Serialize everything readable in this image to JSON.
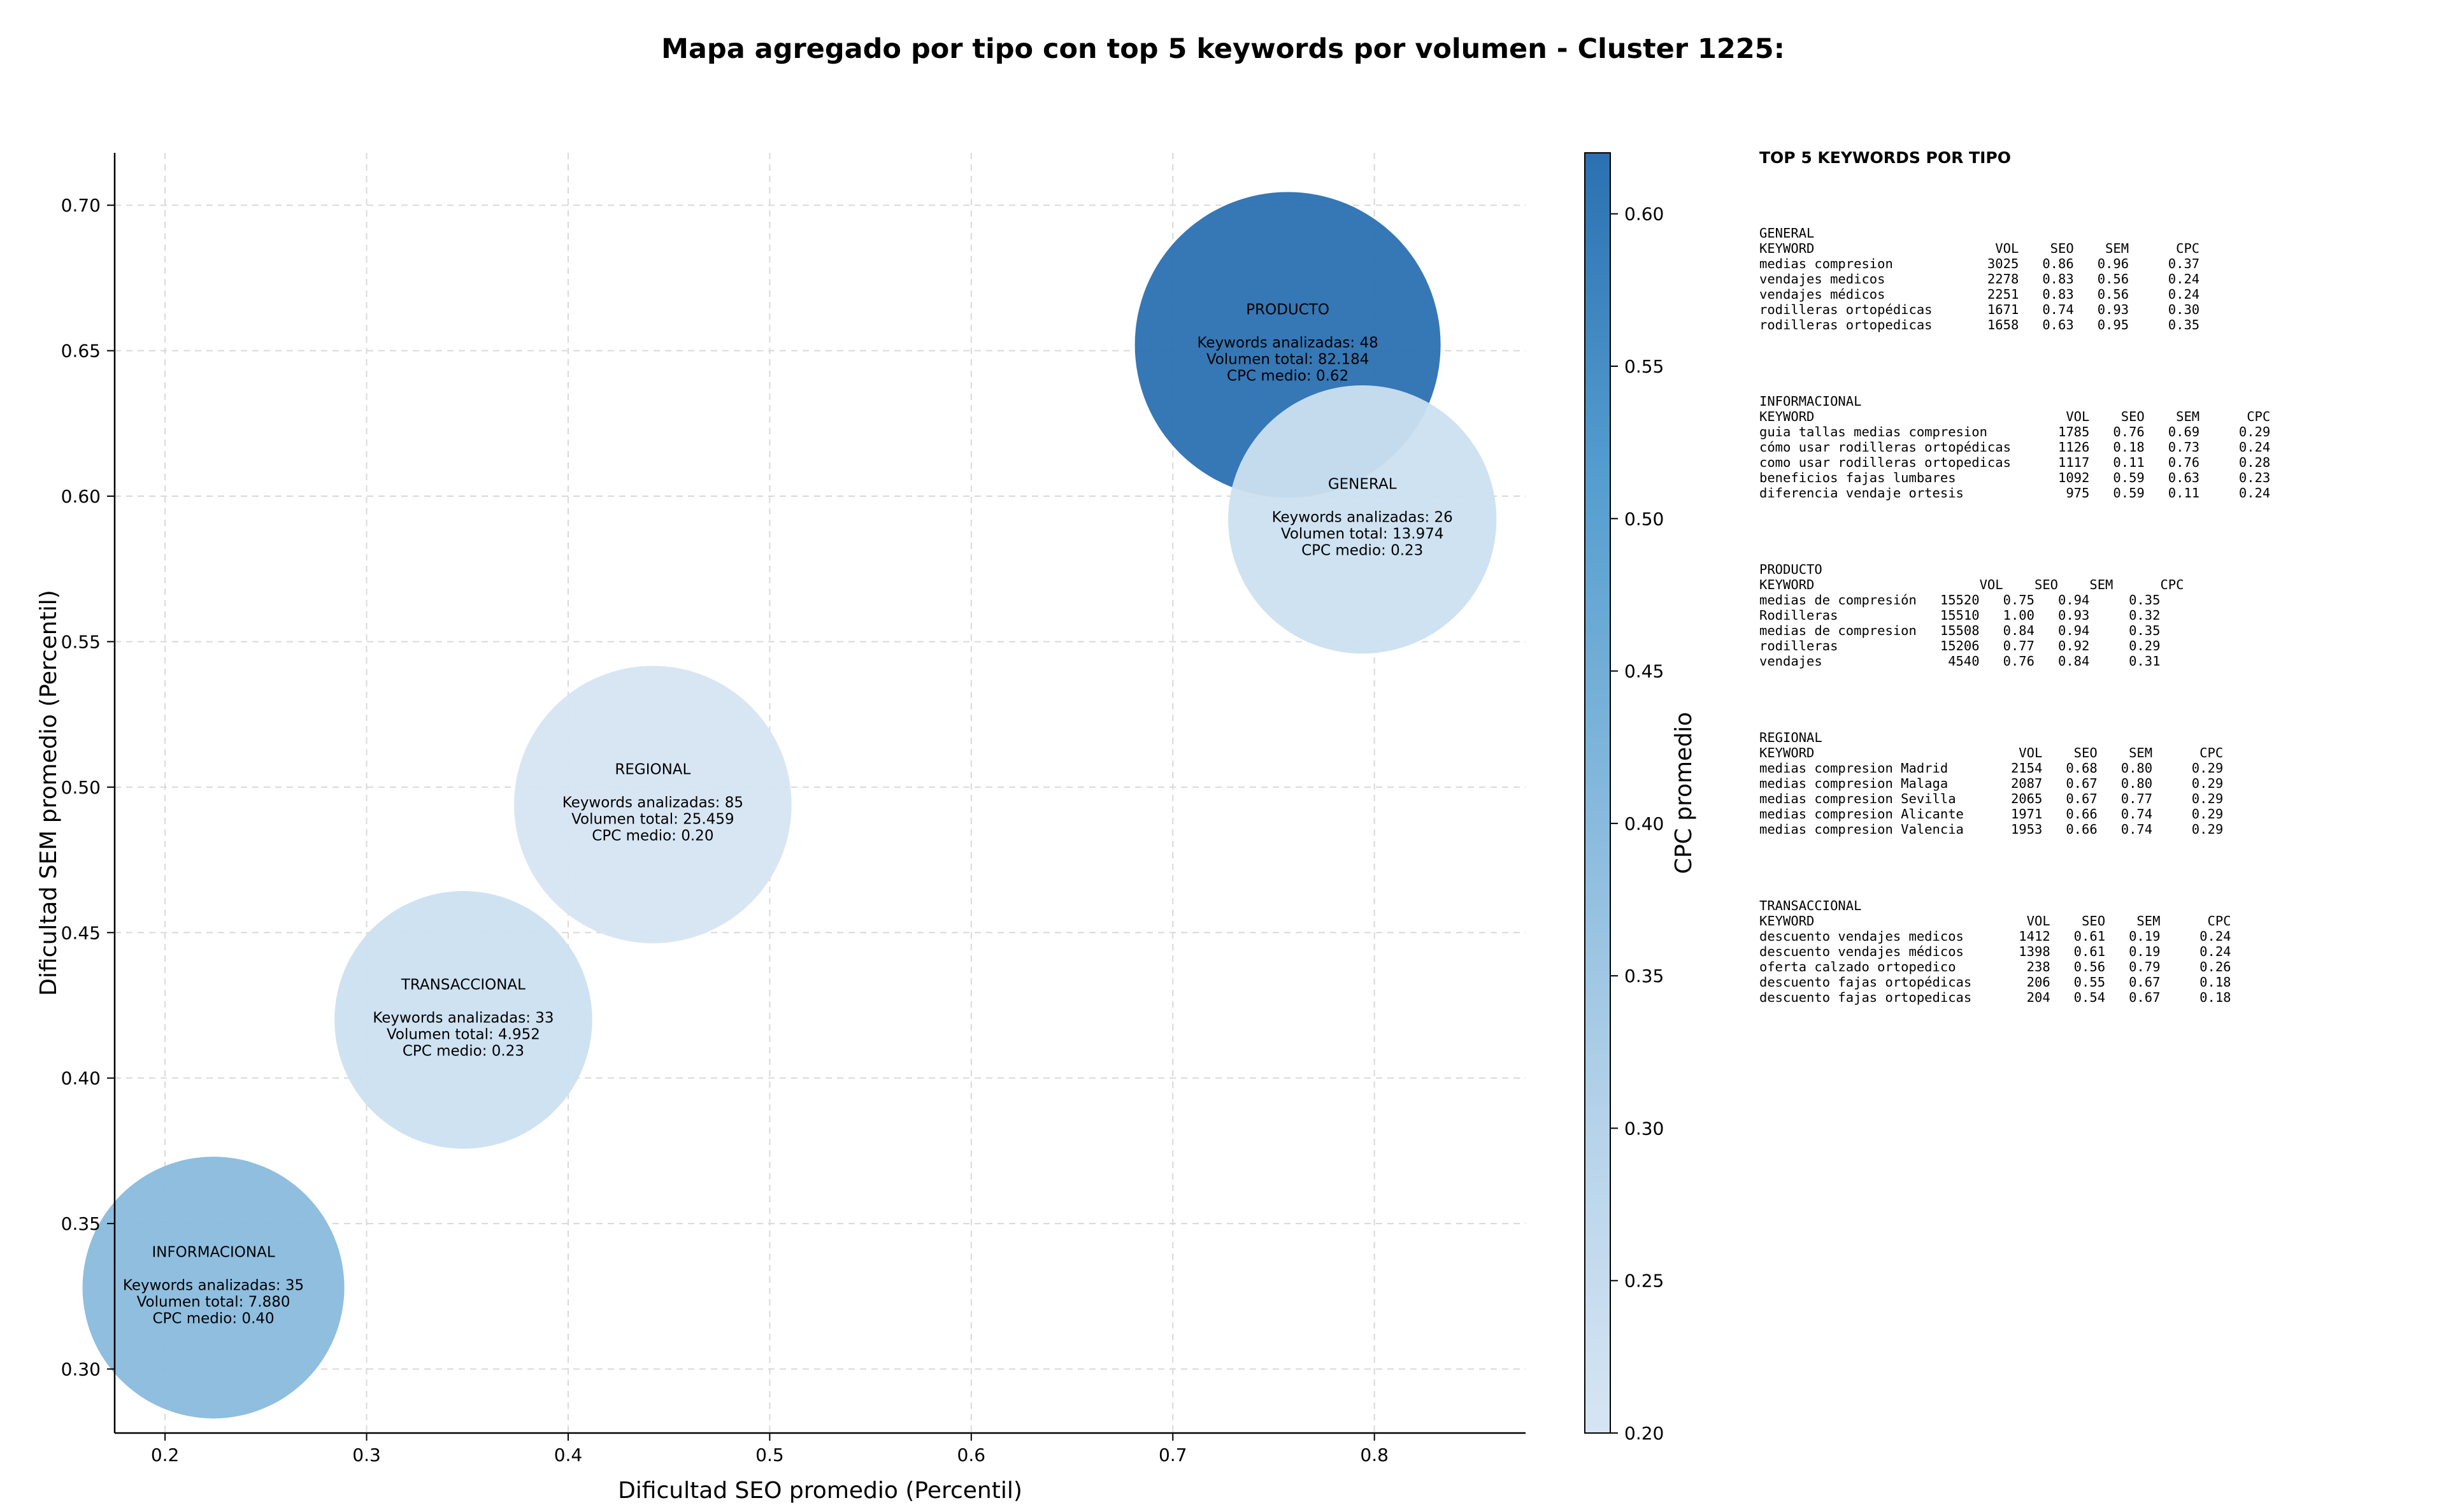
{
  "title": "Mapa agregado por tipo con top 5 keywords por volumen - Cluster 1225:",
  "chart_data": {
    "type": "scatter",
    "title": "Mapa agregado por tipo con top 5 keywords por volumen - Cluster 1225:",
    "xlabel": "Dificultad SEO promedio (Percentil)",
    "ylabel": "Dificultad SEM promedio (Percentil)",
    "xlim": [
      0.175,
      0.875
    ],
    "ylim": [
      0.278,
      0.718
    ],
    "xticks": [
      "0.2",
      "0.3",
      "0.4",
      "0.5",
      "0.6",
      "0.7",
      "0.8"
    ],
    "yticks": [
      "0.30",
      "0.35",
      "0.40",
      "0.45",
      "0.50",
      "0.55",
      "0.60",
      "0.65",
      "0.70"
    ],
    "grid": true,
    "colorbar": {
      "label": "CPC promedio",
      "min": 0.2,
      "max": 0.62,
      "ticks": [
        "0.20",
        "0.25",
        "0.30",
        "0.35",
        "0.40",
        "0.45",
        "0.50",
        "0.55",
        "0.60"
      ],
      "color_low": "#d6e5f3",
      "color_high": "#2b70b1"
    },
    "points": [
      {
        "tipo": "PRODUCTO",
        "seo": 0.757,
        "sem": 0.652,
        "keywords": 48,
        "volumen": 82184,
        "cpc": 0.62,
        "line1": "Keywords analizadas: 48",
        "line2": "Volumen total: 82.184",
        "line3": "CPC medio: 0.62"
      },
      {
        "tipo": "GENERAL",
        "seo": 0.794,
        "sem": 0.592,
        "keywords": 26,
        "volumen": 13974,
        "cpc": 0.23,
        "line1": "Keywords analizadas: 26",
        "line2": "Volumen total: 13.974",
        "line3": "CPC medio: 0.23"
      },
      {
        "tipo": "REGIONAL",
        "seo": 0.442,
        "sem": 0.494,
        "keywords": 85,
        "volumen": 25459,
        "cpc": 0.2,
        "line1": "Keywords analizadas: 85",
        "line2": "Volumen total: 25.459",
        "line3": "CPC medio: 0.20"
      },
      {
        "tipo": "TRANSACCIONAL",
        "seo": 0.348,
        "sem": 0.42,
        "keywords": 33,
        "volumen": 4952,
        "cpc": 0.23,
        "line1": "Keywords analizadas: 33",
        "line2": "Volumen total: 4.952",
        "line3": "CPC medio: 0.23"
      },
      {
        "tipo": "INFORMACIONAL",
        "seo": 0.224,
        "sem": 0.328,
        "keywords": 35,
        "volumen": 7880,
        "cpc": 0.4,
        "line1": "Keywords analizadas: 35",
        "line2": "Volumen total: 7.880",
        "line3": "CPC medio: 0.40"
      }
    ]
  },
  "panel": {
    "title": "TOP 5 KEYWORDS POR TIPO",
    "groups": [
      {
        "name": "GENERAL",
        "lines": [
          "KEYWORD                       VOL    SEO    SEM      CPC",
          "medias compresion            3025   0.86   0.96     0.37",
          "vendajes medicos             2278   0.83   0.56     0.24",
          "vendajes médicos             2251   0.83   0.56     0.24",
          "rodilleras ortopédicas       1671   0.74   0.93     0.30",
          "rodilleras ortopedicas       1658   0.63   0.95     0.35"
        ]
      },
      {
        "name": "INFORMACIONAL",
        "lines": [
          "KEYWORD                                VOL    SEO    SEM      CPC",
          "guia tallas medias compresion         1785   0.76   0.69     0.29",
          "cómo usar rodilleras ortopédicas      1126   0.18   0.73     0.24",
          "como usar rodilleras ortopedicas      1117   0.11   0.76     0.28",
          "beneficios fajas lumbares             1092   0.59   0.63     0.23",
          "diferencia vendaje ortesis             975   0.59   0.11     0.24"
        ]
      },
      {
        "name": "PRODUCTO",
        "lines": [
          "KEYWORD                     VOL    SEO    SEM      CPC",
          "medias de compresión   15520   0.75   0.94     0.35",
          "Rodilleras             15510   1.00   0.93     0.32",
          "medias de compresion   15508   0.84   0.94     0.35",
          "rodilleras             15206   0.77   0.92     0.29",
          "vendajes                4540   0.76   0.84     0.31"
        ]
      },
      {
        "name": "REGIONAL",
        "lines": [
          "KEYWORD                          VOL    SEO    SEM      CPC",
          "medias compresion Madrid        2154   0.68   0.80     0.29",
          "medias compresion Malaga        2087   0.67   0.80     0.29",
          "medias compresion Sevilla       2065   0.67   0.77     0.29",
          "medias compresion Alicante      1971   0.66   0.74     0.29",
          "medias compresion Valencia      1953   0.66   0.74     0.29"
        ]
      },
      {
        "name": "TRANSACCIONAL",
        "lines": [
          "KEYWORD                           VOL    SEO    SEM      CPC",
          "descuento vendajes medicos       1412   0.61   0.19     0.24",
          "descuento vendajes médicos       1398   0.61   0.19     0.24",
          "oferta calzado ortopedico         238   0.56   0.79     0.26",
          "descuento fajas ortopédicas       206   0.55   0.67     0.18",
          "descuento fajas ortopedicas       204   0.54   0.67     0.18"
        ]
      }
    ]
  }
}
